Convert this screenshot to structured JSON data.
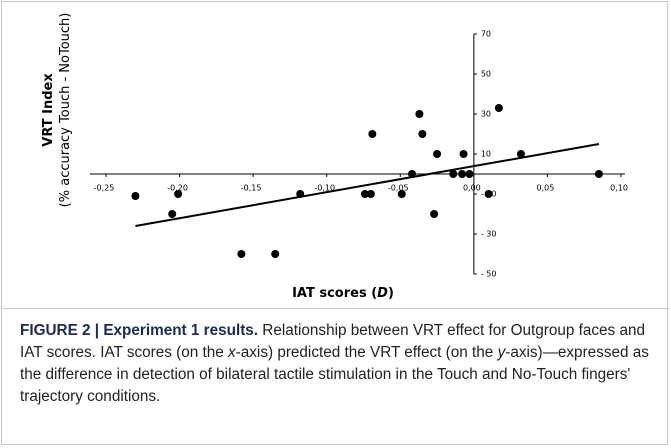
{
  "chart_data": {
    "type": "scatter",
    "y_label": [
      "VRT Index",
      "(% accuracy Touch - NoTouch)"
    ],
    "x_label": [
      "IAT scores (",
      "D",
      ")"
    ],
    "x": [
      -0.23,
      -0.201,
      -0.205,
      -0.158,
      -0.135,
      -0.118,
      -0.074,
      -0.07,
      -0.069,
      -0.049,
      -0.042,
      -0.037,
      -0.035,
      -0.027,
      -0.025,
      -0.014,
      -0.008,
      -0.007,
      -0.003,
      0.01,
      0.017,
      0.032,
      0.085
    ],
    "values": [
      -11,
      -10,
      -20,
      -40,
      -40,
      -10,
      -10,
      -10,
      20,
      -10,
      0,
      30,
      20,
      -20,
      10,
      0,
      0,
      10,
      0,
      -10,
      33,
      10,
      0
    ],
    "color": "#000000",
    "trendline": {
      "x": [
        -0.23,
        0.085
      ],
      "y": [
        -26,
        15
      ]
    },
    "xlim": [
      -0.25,
      0.1
    ],
    "xticks": [
      {
        "value": -0.25,
        "label": "-0,25"
      },
      {
        "value": -0.2,
        "label": "-0,20"
      },
      {
        "value": -0.15,
        "label": "-0,15"
      },
      {
        "value": -0.1,
        "label": "-0,10"
      },
      {
        "value": -0.05,
        "label": "-0,05"
      },
      {
        "value": 0,
        "label": "0,00"
      },
      {
        "value": 0.05,
        "label": "0,05"
      },
      {
        "value": 0.1,
        "label": "0,10"
      }
    ],
    "ylim": [
      -50,
      70
    ],
    "yticks": [
      {
        "value": -50,
        "label": "- 50"
      },
      {
        "value": -30,
        "label": "- 30"
      },
      {
        "value": -10,
        "label": "- 10"
      },
      10,
      30,
      50,
      70
    ]
  },
  "caption": {
    "lead": "FIGURE 2 | Experiment 1 results.",
    "body": [
      " Relationship between VRT effect for Outgroup faces and IAT scores. IAT scores (on the ",
      "x",
      "-axis) predicted the VRT effect (on the ",
      "y",
      "-axis)—expressed as the difference in detection of bilateral tactile stimulation in the Touch and No-Touch fingers' trajectory conditions."
    ]
  }
}
